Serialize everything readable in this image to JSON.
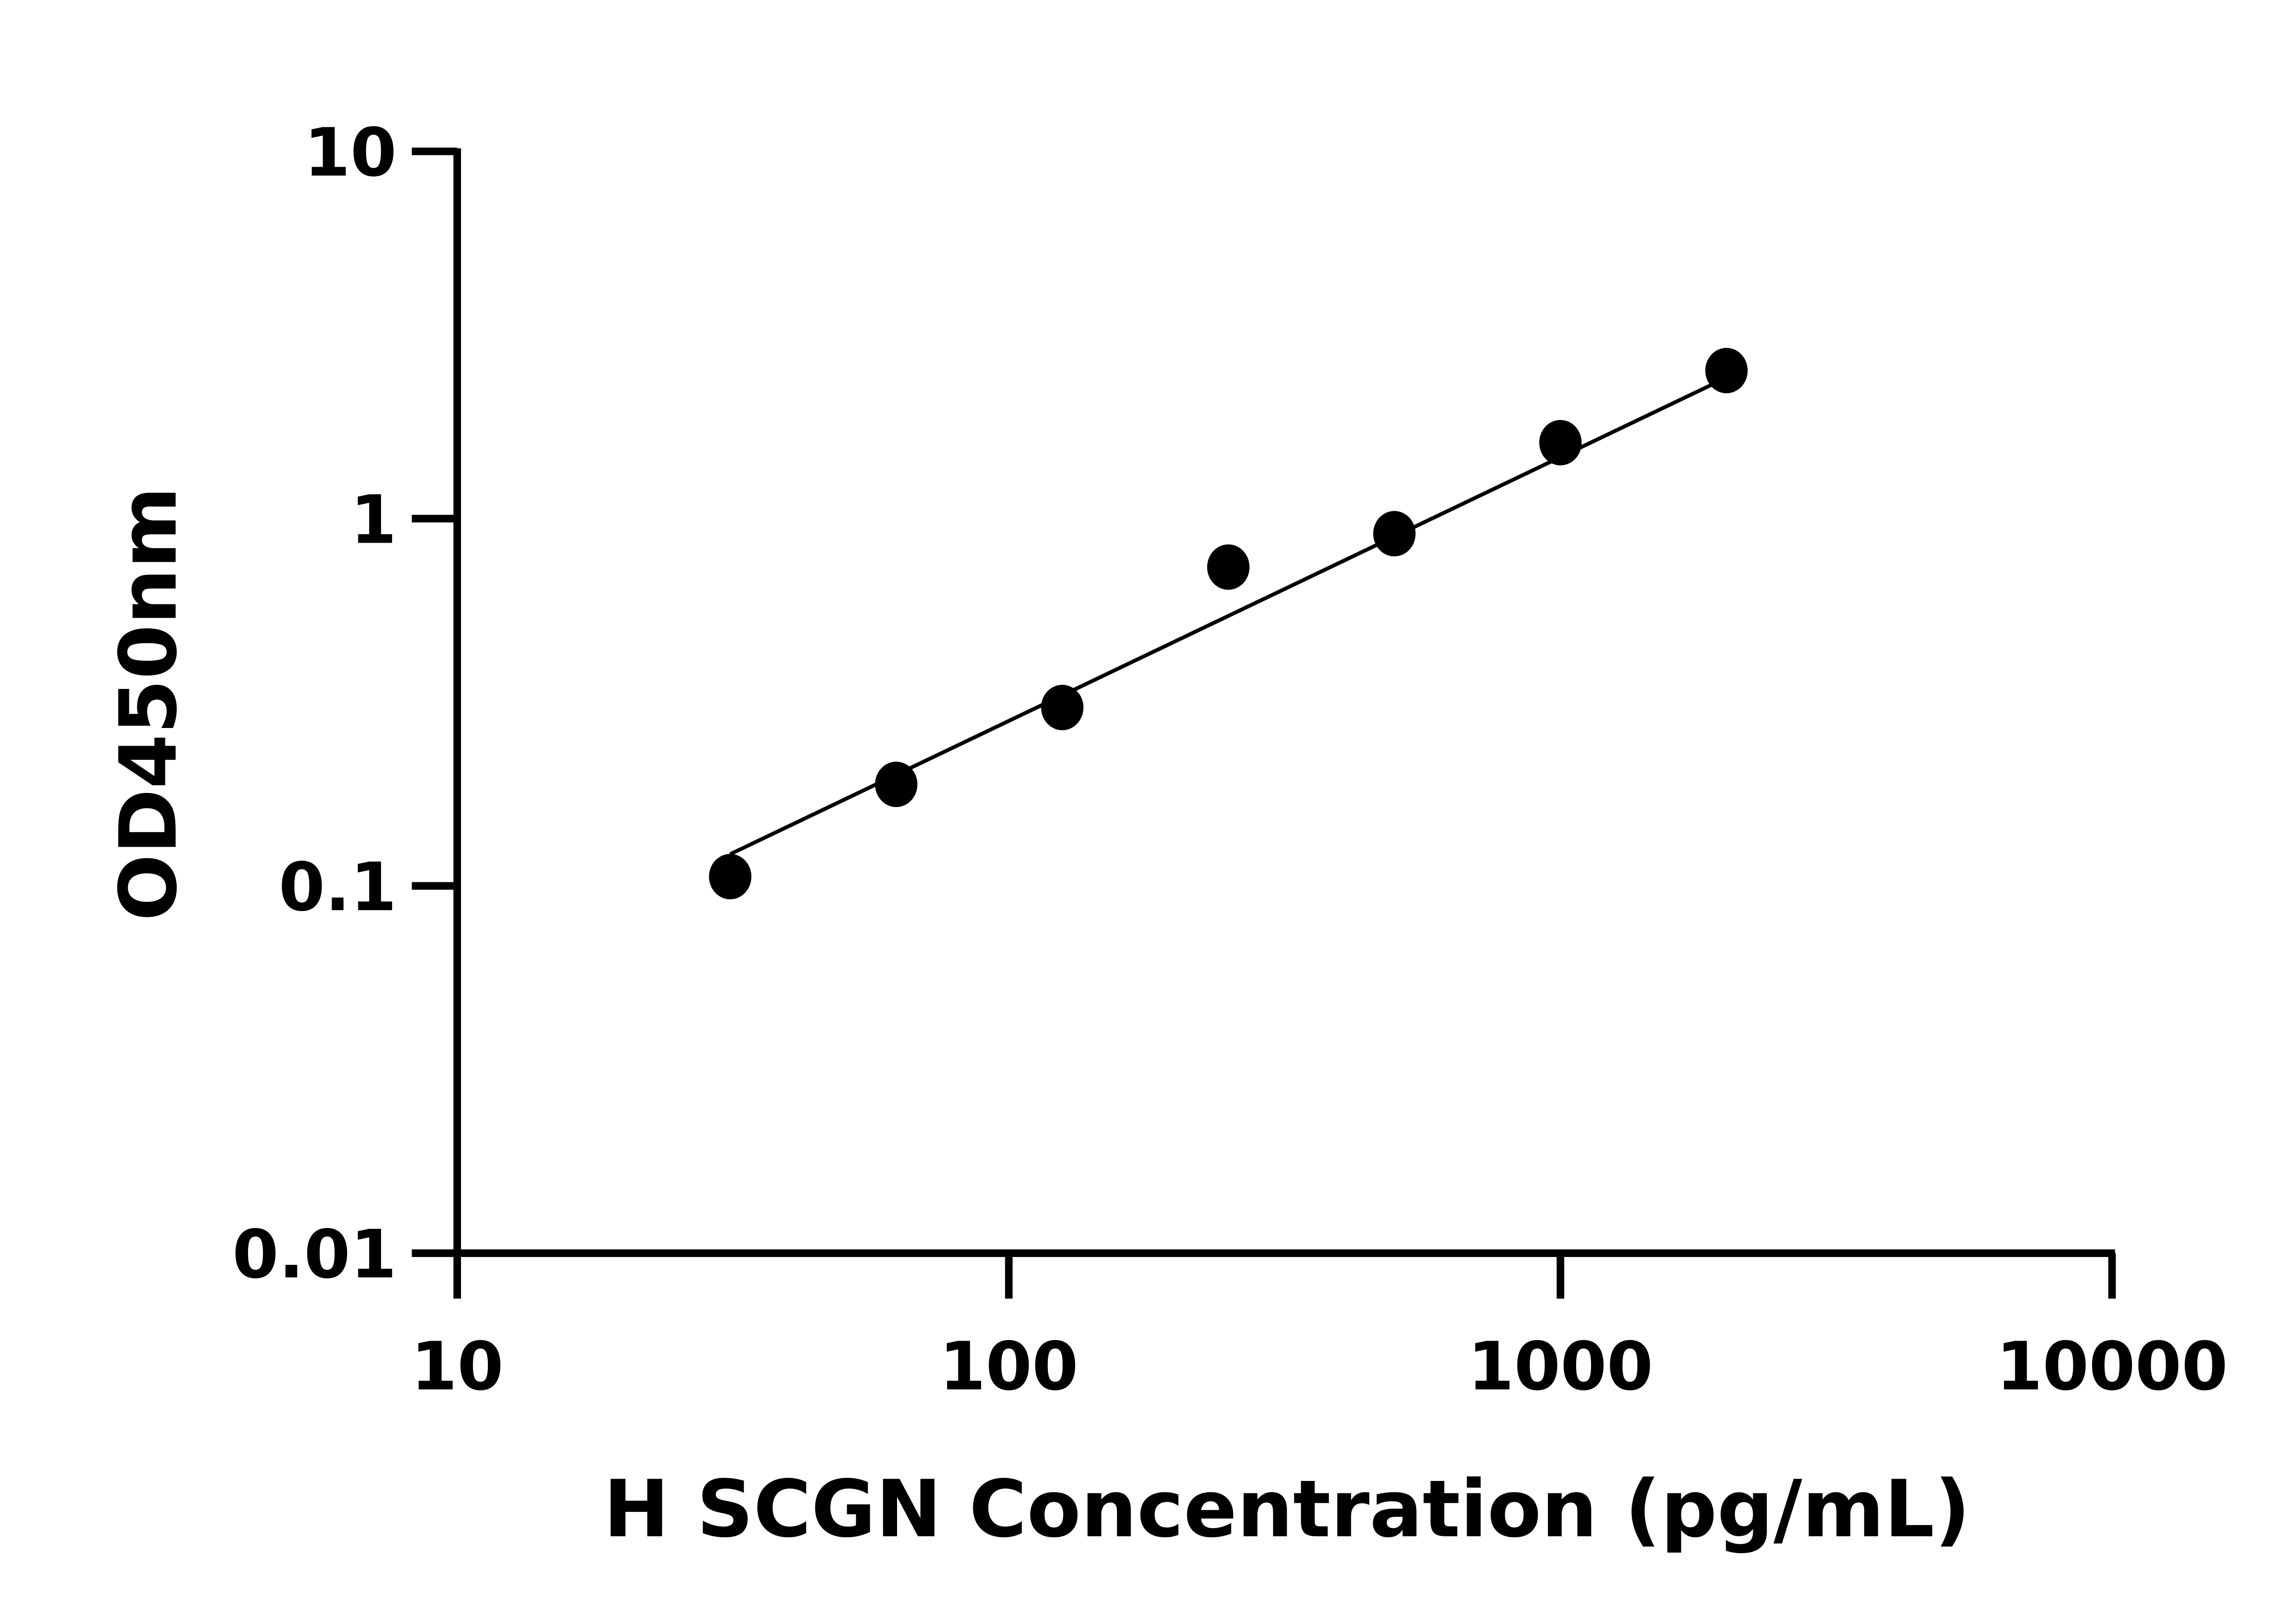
{
  "chart_data": {
    "type": "scatter",
    "title": "",
    "xlabel": "H SCGN Concentration (pg/mL)",
    "ylabel": "OD450nm",
    "x_scale": "log",
    "y_scale": "log",
    "xlim": [
      10,
      10000
    ],
    "ylim": [
      0.01,
      10
    ],
    "x_ticks": [
      "10",
      "100",
      "1000",
      "10000"
    ],
    "y_ticks": [
      "0.01",
      "0.1",
      "1",
      "10"
    ],
    "grid": false,
    "legend": "none",
    "color": "#000000",
    "series": [
      {
        "x": [
          31.25,
          62.5,
          125,
          250,
          500,
          1000,
          2000
        ],
        "y": [
          0.106,
          0.189,
          0.306,
          0.738,
          0.91,
          1.61,
          2.53
        ]
      }
    ],
    "fit_line": {
      "x": [
        31.25,
        2000
      ],
      "y": [
        0.122,
        2.42
      ]
    }
  }
}
